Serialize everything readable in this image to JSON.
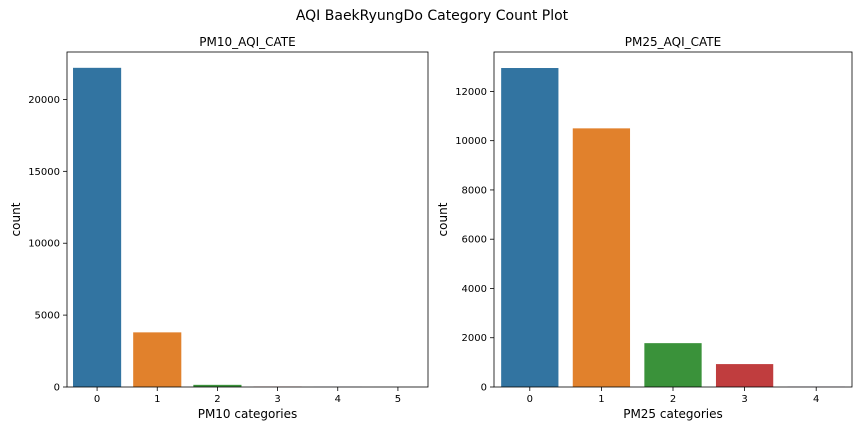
{
  "figure": {
    "suptitle": "AQI BaekRyungDo Category Count Plot"
  },
  "chart_data": [
    {
      "type": "bar",
      "title": "PM10_AQI_CATE",
      "xlabel": "PM10 categories",
      "ylabel": "count",
      "categories": [
        "0",
        "1",
        "2",
        "3",
        "4",
        "5"
      ],
      "values": [
        22200,
        3800,
        150,
        20,
        8,
        3
      ],
      "colors": [
        "#3274a1",
        "#e1812c",
        "#3a923a",
        "#c03d3e",
        "#9372b2",
        "#845b53"
      ],
      "ylim": [
        0,
        23300
      ],
      "yticks": [
        0,
        5000,
        10000,
        15000,
        20000
      ],
      "grid": false,
      "legend": "none"
    },
    {
      "type": "bar",
      "title": "PM25_AQI_CATE",
      "xlabel": "PM25 categories",
      "ylabel": "count",
      "categories": [
        "0",
        "1",
        "2",
        "3",
        "4"
      ],
      "values": [
        12950,
        10500,
        1780,
        930,
        10
      ],
      "colors": [
        "#3274a1",
        "#e1812c",
        "#3a923a",
        "#c03d3e",
        "#9372b2"
      ],
      "ylim": [
        0,
        13600
      ],
      "yticks": [
        0,
        2000,
        4000,
        6000,
        8000,
        10000,
        12000
      ],
      "grid": false,
      "legend": "none"
    }
  ]
}
